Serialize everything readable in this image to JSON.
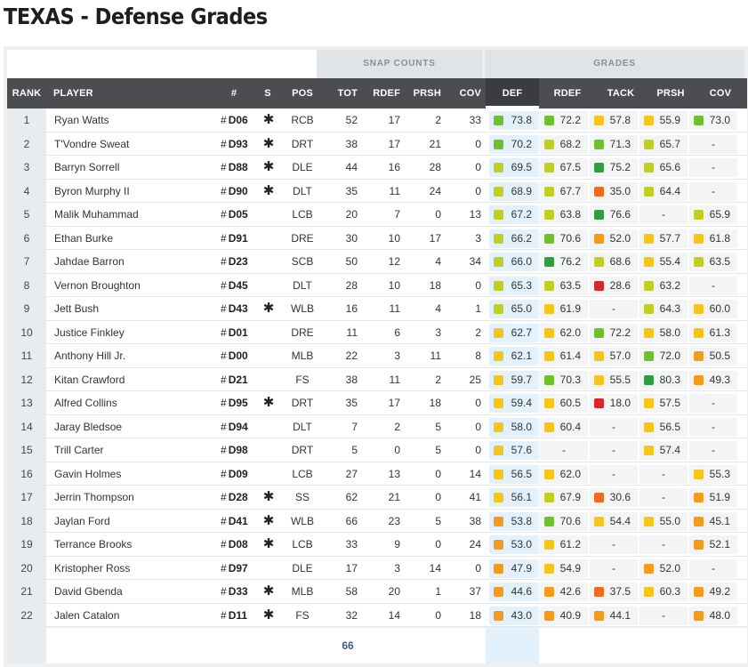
{
  "page_title": "TEXAS - Defense Grades",
  "group_headers": {
    "snap_counts": "SNAP COUNTS",
    "grades": "GRADES"
  },
  "columns": {
    "rank": "RANK",
    "player": "PLAYER",
    "number": "#",
    "s": "S",
    "pos": "POS",
    "tot": "TOT",
    "rdef": "RDEF",
    "prsh": "PRSH",
    "cov": "COV",
    "g_def": "DEF",
    "g_rdef": "RDEF",
    "g_tack": "TACK",
    "g_prsh": "PRSH",
    "g_cov": "COV"
  },
  "colors": {
    "dark_green": "#2e9e3f",
    "green": "#6fc02f",
    "yellow_green": "#c1cf22",
    "yellow": "#f7c419",
    "orange": "#f59a1a",
    "orange_red": "#ef6b1f",
    "red": "#d7262e"
  },
  "rows": [
    {
      "rank": "1",
      "player": "Ryan Watts",
      "num": "D06",
      "star": "✱",
      "pos": "RCB",
      "tot": "52",
      "rdef": "17",
      "prsh": "2",
      "cov": "33",
      "g": [
        [
          "73.8",
          "#6fc02f"
        ],
        [
          "72.2",
          "#6fc02f"
        ],
        [
          "57.8",
          "#f7c419"
        ],
        [
          "55.9",
          "#f7c419"
        ],
        [
          "73.0",
          "#6fc02f"
        ]
      ]
    },
    {
      "rank": "2",
      "player": "T'Vondre Sweat",
      "num": "D93",
      "star": "✱",
      "pos": "DRT",
      "tot": "38",
      "rdef": "17",
      "prsh": "21",
      "cov": "0",
      "g": [
        [
          "70.2",
          "#6fc02f"
        ],
        [
          "68.2",
          "#c1cf22"
        ],
        [
          "71.3",
          "#6fc02f"
        ],
        [
          "65.7",
          "#c1cf22"
        ],
        [
          "-",
          ""
        ]
      ]
    },
    {
      "rank": "3",
      "player": "Barryn Sorrell",
      "num": "D88",
      "star": "✱",
      "pos": "DLE",
      "tot": "44",
      "rdef": "16",
      "prsh": "28",
      "cov": "0",
      "g": [
        [
          "69.5",
          "#c1cf22"
        ],
        [
          "67.5",
          "#c1cf22"
        ],
        [
          "75.2",
          "#2e9e3f"
        ],
        [
          "65.6",
          "#c1cf22"
        ],
        [
          "-",
          ""
        ]
      ]
    },
    {
      "rank": "4",
      "player": "Byron Murphy II",
      "num": "D90",
      "star": "✱",
      "pos": "DLT",
      "tot": "35",
      "rdef": "11",
      "prsh": "24",
      "cov": "0",
      "g": [
        [
          "68.9",
          "#c1cf22"
        ],
        [
          "67.7",
          "#c1cf22"
        ],
        [
          "35.0",
          "#ef6b1f"
        ],
        [
          "64.4",
          "#c1cf22"
        ],
        [
          "-",
          ""
        ]
      ]
    },
    {
      "rank": "5",
      "player": "Malik Muhammad",
      "num": "D05",
      "star": "",
      "pos": "LCB",
      "tot": "20",
      "rdef": "7",
      "prsh": "0",
      "cov": "13",
      "g": [
        [
          "67.2",
          "#c1cf22"
        ],
        [
          "63.8",
          "#c1cf22"
        ],
        [
          "76.6",
          "#2e9e3f"
        ],
        [
          "-",
          ""
        ],
        [
          "65.9",
          "#c1cf22"
        ]
      ]
    },
    {
      "rank": "6",
      "player": "Ethan Burke",
      "num": "D91",
      "star": "",
      "pos": "DRE",
      "tot": "30",
      "rdef": "10",
      "prsh": "17",
      "cov": "3",
      "g": [
        [
          "66.2",
          "#c1cf22"
        ],
        [
          "70.6",
          "#6fc02f"
        ],
        [
          "52.0",
          "#f59a1a"
        ],
        [
          "57.7",
          "#f7c419"
        ],
        [
          "61.8",
          "#f7c419"
        ]
      ]
    },
    {
      "rank": "7",
      "player": "Jahdae Barron",
      "num": "D23",
      "star": "",
      "pos": "SCB",
      "tot": "50",
      "rdef": "12",
      "prsh": "4",
      "cov": "34",
      "g": [
        [
          "66.0",
          "#c1cf22"
        ],
        [
          "76.2",
          "#2e9e3f"
        ],
        [
          "68.6",
          "#c1cf22"
        ],
        [
          "55.4",
          "#f7c419"
        ],
        [
          "63.5",
          "#c1cf22"
        ]
      ]
    },
    {
      "rank": "8",
      "player": "Vernon Broughton",
      "num": "D45",
      "star": "",
      "pos": "DLT",
      "tot": "28",
      "rdef": "10",
      "prsh": "18",
      "cov": "0",
      "g": [
        [
          "65.3",
          "#c1cf22"
        ],
        [
          "63.5",
          "#c1cf22"
        ],
        [
          "28.6",
          "#d7262e"
        ],
        [
          "63.2",
          "#c1cf22"
        ],
        [
          "-",
          ""
        ]
      ]
    },
    {
      "rank": "9",
      "player": "Jett Bush",
      "num": "D43",
      "star": "✱",
      "pos": "WLB",
      "tot": "16",
      "rdef": "11",
      "prsh": "4",
      "cov": "1",
      "g": [
        [
          "65.0",
          "#c1cf22"
        ],
        [
          "61.9",
          "#f7c419"
        ],
        [
          "-",
          ""
        ],
        [
          "64.3",
          "#c1cf22"
        ],
        [
          "60.0",
          "#f7c419"
        ]
      ]
    },
    {
      "rank": "10",
      "player": "Justice Finkley",
      "num": "D01",
      "star": "",
      "pos": "DRE",
      "tot": "11",
      "rdef": "6",
      "prsh": "3",
      "cov": "2",
      "g": [
        [
          "62.7",
          "#f7c419"
        ],
        [
          "62.0",
          "#f7c419"
        ],
        [
          "72.2",
          "#6fc02f"
        ],
        [
          "58.0",
          "#f7c419"
        ],
        [
          "61.3",
          "#f7c419"
        ]
      ]
    },
    {
      "rank": "11",
      "player": "Anthony Hill Jr.",
      "num": "D00",
      "star": "",
      "pos": "MLB",
      "tot": "22",
      "rdef": "3",
      "prsh": "11",
      "cov": "8",
      "g": [
        [
          "62.1",
          "#f7c419"
        ],
        [
          "61.4",
          "#f7c419"
        ],
        [
          "57.0",
          "#f7c419"
        ],
        [
          "72.0",
          "#6fc02f"
        ],
        [
          "50.5",
          "#f59a1a"
        ]
      ]
    },
    {
      "rank": "12",
      "player": "Kitan Crawford",
      "num": "D21",
      "star": "",
      "pos": "FS",
      "tot": "38",
      "rdef": "11",
      "prsh": "2",
      "cov": "25",
      "g": [
        [
          "59.7",
          "#f7c419"
        ],
        [
          "70.3",
          "#6fc02f"
        ],
        [
          "55.5",
          "#f7c419"
        ],
        [
          "80.3",
          "#2e9e3f"
        ],
        [
          "49.3",
          "#f59a1a"
        ]
      ]
    },
    {
      "rank": "13",
      "player": "Alfred Collins",
      "num": "D95",
      "star": "✱",
      "pos": "DRT",
      "tot": "35",
      "rdef": "17",
      "prsh": "18",
      "cov": "0",
      "g": [
        [
          "59.4",
          "#f7c419"
        ],
        [
          "60.5",
          "#f7c419"
        ],
        [
          "18.0",
          "#d7262e"
        ],
        [
          "57.5",
          "#f7c419"
        ],
        [
          "-",
          ""
        ]
      ]
    },
    {
      "rank": "14",
      "player": "Jaray Bledsoe",
      "num": "D94",
      "star": "",
      "pos": "DLT",
      "tot": "7",
      "rdef": "2",
      "prsh": "5",
      "cov": "0",
      "g": [
        [
          "58.0",
          "#f7c419"
        ],
        [
          "60.4",
          "#f7c419"
        ],
        [
          "-",
          ""
        ],
        [
          "56.5",
          "#f7c419"
        ],
        [
          "-",
          ""
        ]
      ]
    },
    {
      "rank": "15",
      "player": "Trill Carter",
      "num": "D98",
      "star": "",
      "pos": "DRT",
      "tot": "5",
      "rdef": "0",
      "prsh": "5",
      "cov": "0",
      "g": [
        [
          "57.6",
          "#f7c419"
        ],
        [
          "-",
          ""
        ],
        [
          "-",
          ""
        ],
        [
          "57.4",
          "#f7c419"
        ],
        [
          "-",
          ""
        ]
      ]
    },
    {
      "rank": "16",
      "player": "Gavin Holmes",
      "num": "D09",
      "star": "",
      "pos": "LCB",
      "tot": "27",
      "rdef": "13",
      "prsh": "0",
      "cov": "14",
      "g": [
        [
          "56.5",
          "#f7c419"
        ],
        [
          "62.0",
          "#f7c419"
        ],
        [
          "-",
          ""
        ],
        [
          "-",
          ""
        ],
        [
          "55.3",
          "#f7c419"
        ]
      ]
    },
    {
      "rank": "17",
      "player": "Jerrin Thompson",
      "num": "D28",
      "star": "✱",
      "pos": "SS",
      "tot": "62",
      "rdef": "21",
      "prsh": "0",
      "cov": "41",
      "g": [
        [
          "56.1",
          "#f7c419"
        ],
        [
          "67.9",
          "#c1cf22"
        ],
        [
          "30.6",
          "#ef6b1f"
        ],
        [
          "-",
          ""
        ],
        [
          "51.9",
          "#f59a1a"
        ]
      ]
    },
    {
      "rank": "18",
      "player": "Jaylan Ford",
      "num": "D41",
      "star": "✱",
      "pos": "WLB",
      "tot": "66",
      "rdef": "23",
      "prsh": "5",
      "cov": "38",
      "g": [
        [
          "53.8",
          "#f59a1a"
        ],
        [
          "70.6",
          "#6fc02f"
        ],
        [
          "54.4",
          "#f7c419"
        ],
        [
          "55.0",
          "#f7c419"
        ],
        [
          "45.1",
          "#f59a1a"
        ]
      ]
    },
    {
      "rank": "19",
      "player": "Terrance Brooks",
      "num": "D08",
      "star": "✱",
      "pos": "LCB",
      "tot": "33",
      "rdef": "9",
      "prsh": "0",
      "cov": "24",
      "g": [
        [
          "53.0",
          "#f59a1a"
        ],
        [
          "61.2",
          "#f7c419"
        ],
        [
          "-",
          ""
        ],
        [
          "-",
          ""
        ],
        [
          "52.1",
          "#f59a1a"
        ]
      ]
    },
    {
      "rank": "20",
      "player": "Kristopher Ross",
      "num": "D97",
      "star": "",
      "pos": "DLE",
      "tot": "17",
      "rdef": "3",
      "prsh": "14",
      "cov": "0",
      "g": [
        [
          "47.9",
          "#f59a1a"
        ],
        [
          "54.9",
          "#f7c419"
        ],
        [
          "-",
          ""
        ],
        [
          "52.0",
          "#f59a1a"
        ],
        [
          "-",
          ""
        ]
      ]
    },
    {
      "rank": "21",
      "player": "David Gbenda",
      "num": "D33",
      "star": "✱",
      "pos": "MLB",
      "tot": "58",
      "rdef": "20",
      "prsh": "1",
      "cov": "37",
      "g": [
        [
          "44.6",
          "#f59a1a"
        ],
        [
          "42.6",
          "#f59a1a"
        ],
        [
          "37.5",
          "#ef6b1f"
        ],
        [
          "60.3",
          "#f7c419"
        ],
        [
          "49.2",
          "#f59a1a"
        ]
      ]
    },
    {
      "rank": "22",
      "player": "Jalen Catalon",
      "num": "D11",
      "star": "✱",
      "pos": "FS",
      "tot": "32",
      "rdef": "14",
      "prsh": "0",
      "cov": "18",
      "g": [
        [
          "43.0",
          "#f59a1a"
        ],
        [
          "40.9",
          "#f59a1a"
        ],
        [
          "44.1",
          "#f59a1a"
        ],
        [
          "-",
          ""
        ],
        [
          "48.0",
          "#f59a1a"
        ]
      ]
    }
  ],
  "footer": {
    "tot_total": "66"
  }
}
